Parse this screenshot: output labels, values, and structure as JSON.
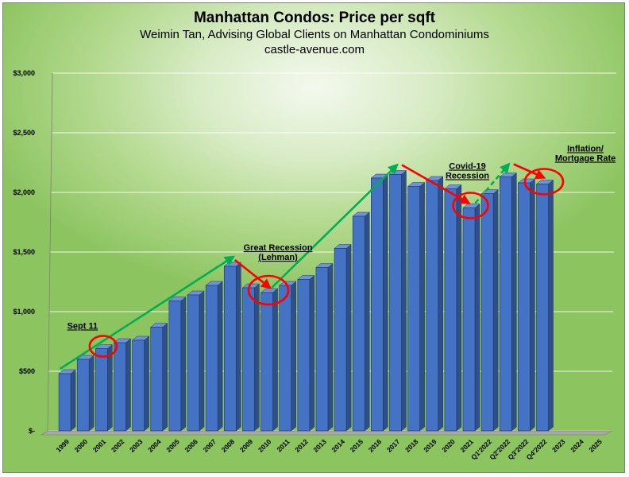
{
  "chart_data": {
    "type": "bar",
    "title": "Manhattan Condos: Price per sqft",
    "subtitle": "Weimin Tan, Advising Global Clients on Manhattan Condominiums",
    "source": "castle-avenue.com",
    "categories": [
      "1999",
      "2000",
      "2001",
      "2002",
      "2003",
      "2004",
      "2005",
      "2006",
      "2007",
      "2008",
      "2009",
      "2010",
      "2011",
      "2012",
      "2013",
      "2014",
      "2015",
      "2016",
      "2017",
      "2018",
      "2019",
      "2020",
      "2021",
      "Q1'2022",
      "Q2'2022",
      "Q3'2022",
      "Q4'2022",
      "2023",
      "2024",
      "2025"
    ],
    "values": [
      480,
      600,
      690,
      740,
      760,
      870,
      1090,
      1140,
      1220,
      1380,
      1200,
      1160,
      1220,
      1270,
      1370,
      1530,
      1800,
      2120,
      2150,
      2050,
      2100,
      2030,
      1870,
      1990,
      2130,
      2080,
      2070,
      null,
      null,
      null
    ],
    "ylim": [
      0,
      3000
    ],
    "yticks": [
      0,
      500,
      1000,
      1500,
      2000,
      2500,
      3000
    ],
    "ytick_labels": [
      "$-",
      "$500",
      "$1,000",
      "$1,500",
      "$2,000",
      "$2,500",
      "$3,000"
    ],
    "xlabel": "",
    "ylabel": "",
    "grid": true,
    "bar_color": "#4472c4",
    "annotations": [
      {
        "text": "Sept 11",
        "category": "2001"
      },
      {
        "text": "Great Recession (Lehman)",
        "category": "2010"
      },
      {
        "text": "Covid-19 Recession",
        "category": "2021"
      },
      {
        "text": "Inflation/ Mortgage Rate",
        "category": "Q4'2022"
      }
    ]
  }
}
